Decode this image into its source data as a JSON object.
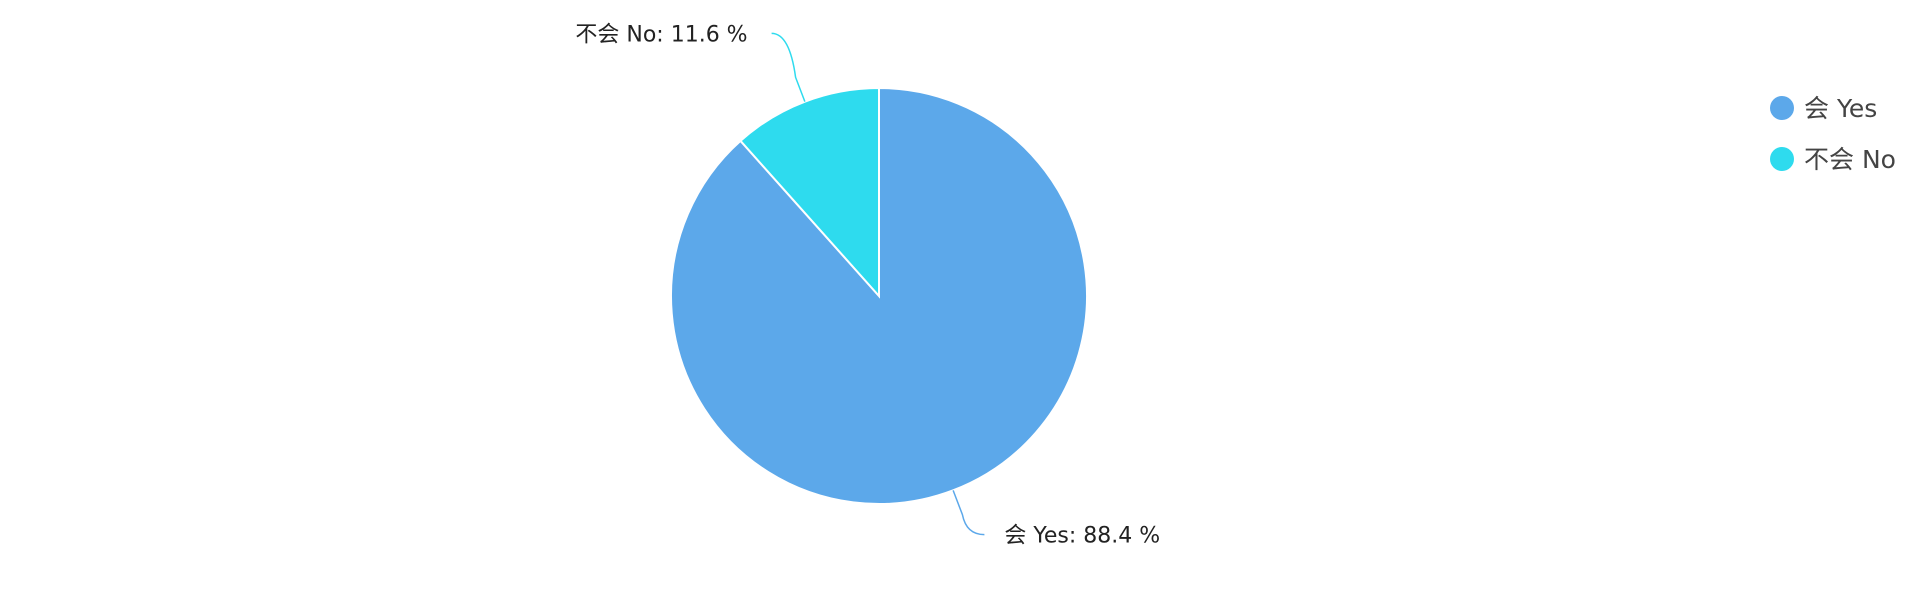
{
  "chart_data": {
    "type": "pie",
    "title": "",
    "slices": [
      {
        "name": "会 Yes",
        "value": 88.4,
        "label": "会 Yes: 88.4 %",
        "color": "#5CA8EA"
      },
      {
        "name": "不会 No",
        "value": 11.6,
        "label": "不会 No: 11.6 %",
        "color": "#2EDBEE"
      }
    ],
    "start_angle_deg": 0,
    "direction": "clockwise",
    "legend": {
      "position": "top-right",
      "items": [
        "会 Yes",
        "不会 No"
      ]
    }
  }
}
